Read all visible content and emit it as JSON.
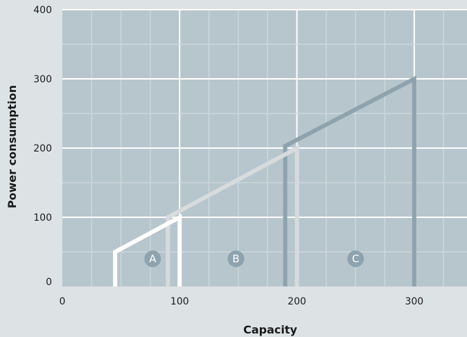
{
  "chart_data": {
    "type": "line",
    "xlabel": "Capacity",
    "ylabel": "Power consumption",
    "xlim": [
      0,
      345
    ],
    "ylim": [
      0,
      400
    ],
    "xticks": [
      0,
      100,
      200,
      300
    ],
    "yticks": [
      0,
      100,
      200,
      300,
      400
    ],
    "grid": true,
    "series": [
      {
        "name": "A",
        "color": "#ffffff",
        "points": [
          [
            45,
            -20
          ],
          [
            45,
            50
          ],
          [
            100,
            100
          ],
          [
            100,
            -20
          ]
        ],
        "label_at": [
          77,
          40
        ]
      },
      {
        "name": "B",
        "color": "#d6dbde",
        "points": [
          [
            90,
            -20
          ],
          [
            90,
            100
          ],
          [
            200,
            200
          ],
          [
            200,
            -20
          ]
        ],
        "label_at": [
          148,
          40
        ]
      },
      {
        "name": "C",
        "color": "#8fa3ae",
        "points": [
          [
            190,
            -20
          ],
          [
            190,
            203
          ],
          [
            300,
            300
          ],
          [
            300,
            -20
          ]
        ],
        "label_at": [
          250,
          40
        ]
      }
    ],
    "colors": {
      "page_background": "#dde2e5",
      "plot_background": "#b7c6cd",
      "grid_major": "#ffffff",
      "grid_minor": "#d0dade",
      "label_circle": "#8fa3ae"
    }
  }
}
